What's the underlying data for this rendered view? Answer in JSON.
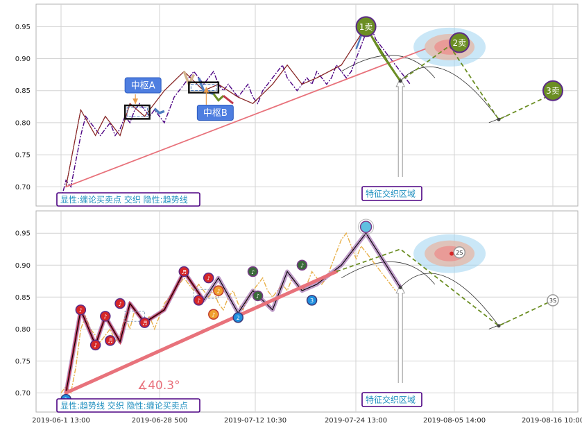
{
  "chart_data": [
    {
      "type": "line",
      "panel": "top",
      "ylim": [
        0.67,
        0.985
      ],
      "yticks": [
        0.7,
        0.75,
        0.8,
        0.85,
        0.9,
        0.95
      ],
      "ytick_labels": [
        "0.70",
        "0.75",
        "0.80",
        "0.85",
        "0.90",
        "0.95"
      ],
      "x_index_range": [
        0,
        100
      ],
      "grid": true,
      "series": [
        {
          "role": "price",
          "color": "#4b0082",
          "style": "dashdot",
          "x": [
            1,
            2,
            3,
            4,
            5,
            6,
            7,
            8,
            9,
            10,
            11,
            12,
            13,
            14,
            15,
            16,
            17,
            18,
            19,
            20,
            21,
            22,
            23,
            24,
            25,
            26,
            27,
            28,
            29,
            30,
            31,
            32,
            33,
            34,
            35,
            36,
            37,
            38,
            39,
            40,
            41,
            42,
            43,
            44,
            45,
            46,
            47,
            48,
            49,
            50,
            51,
            52,
            53,
            54,
            55,
            56,
            57,
            58,
            59,
            60,
            61,
            62,
            63,
            64,
            65,
            66,
            67,
            68,
            69,
            70,
            71,
            72
          ],
          "y": [
            0.68,
            0.71,
            0.7,
            0.74,
            0.78,
            0.81,
            0.8,
            0.79,
            0.78,
            0.79,
            0.8,
            0.78,
            0.79,
            0.81,
            0.8,
            0.82,
            0.83,
            0.82,
            0.81,
            0.82,
            0.81,
            0.8,
            0.82,
            0.84,
            0.85,
            0.86,
            0.87,
            0.88,
            0.87,
            0.86,
            0.87,
            0.88,
            0.86,
            0.85,
            0.86,
            0.85,
            0.84,
            0.85,
            0.86,
            0.84,
            0.83,
            0.85,
            0.86,
            0.87,
            0.88,
            0.89,
            0.87,
            0.86,
            0.85,
            0.86,
            0.87,
            0.86,
            0.88,
            0.87,
            0.86,
            0.87,
            0.89,
            0.88,
            0.87,
            0.88,
            0.9,
            0.92,
            0.94,
            0.95,
            0.93,
            0.92,
            0.91,
            0.9,
            0.89,
            0.88,
            0.87,
            0.86
          ]
        },
        {
          "role": "stroke",
          "color": "#000000",
          "style": "solid",
          "x": [
            2,
            5,
            8,
            10,
            13,
            15,
            18,
            22,
            26,
            30,
            33,
            37,
            40,
            44,
            47,
            50,
            53,
            58,
            63,
            70
          ],
          "y": [
            0.7,
            0.82,
            0.78,
            0.81,
            0.78,
            0.83,
            0.81,
            0.85,
            0.88,
            0.85,
            0.86,
            0.84,
            0.83,
            0.86,
            0.89,
            0.86,
            0.87,
            0.89,
            0.95,
            0.865
          ]
        },
        {
          "role": "stroke-red",
          "color": "#a52a2a",
          "style": "solid",
          "x": [
            2,
            5,
            8,
            10,
            13,
            15,
            18,
            22,
            26,
            30,
            33,
            37,
            40,
            44,
            47,
            50,
            53,
            58,
            63
          ],
          "y": [
            0.7,
            0.82,
            0.78,
            0.81,
            0.78,
            0.83,
            0.81,
            0.85,
            0.88,
            0.85,
            0.86,
            0.84,
            0.83,
            0.86,
            0.89,
            0.86,
            0.87,
            0.89,
            0.95
          ]
        },
        {
          "role": "trendline",
          "color": "#e8727b",
          "style": "solid",
          "x": [
            2,
            75
          ],
          "y": [
            0.7,
            0.915
          ]
        },
        {
          "role": "sell-projection",
          "color": "#6b8e23",
          "style": "dashed",
          "x": [
            63,
            70,
            80,
            90,
            101
          ],
          "y": [
            0.95,
            0.865,
            0.92,
            0.805,
            0.845
          ]
        }
      ],
      "pivots": [
        {
          "label": "中枢A",
          "x_range": [
            14,
            19
          ],
          "y_range": [
            0.806,
            0.827
          ]
        },
        {
          "label": "中枢B",
          "x_range": [
            27,
            33
          ],
          "y_range": [
            0.847,
            0.863
          ]
        }
      ],
      "signals": [
        {
          "label": "1卖",
          "x": 63,
          "y": 0.95
        },
        {
          "label": "2卖",
          "x": 82,
          "y": 0.925
        },
        {
          "label": "3卖",
          "x": 101,
          "y": 0.85
        }
      ],
      "legend": "显性:缠论买卖点 交织 隐性:趋势线",
      "zone_label": "特征交织区域"
    },
    {
      "type": "line",
      "panel": "bottom",
      "ylim": [
        0.67,
        0.985
      ],
      "yticks": [
        0.7,
        0.75,
        0.8,
        0.85,
        0.9,
        0.95
      ],
      "ytick_labels": [
        "0.70",
        "0.75",
        "0.80",
        "0.85",
        "0.90",
        "0.95"
      ],
      "grid": true,
      "x_tick_labels": [
        "2019-06-1 13:00",
        "2019-06-28 500",
        "2019-07-12 10:30",
        "2019-07-24 13:00",
        "2019-08-05 14:00",
        "2019-08-16 10:00"
      ],
      "series": [
        {
          "role": "price",
          "color": "#e8b04a",
          "style": "dashdot",
          "x": [
            1,
            2,
            3,
            4,
            5,
            6,
            7,
            8,
            9,
            10,
            11,
            12,
            13,
            14,
            15,
            16,
            17,
            18,
            19,
            20,
            21,
            22,
            23,
            24,
            25,
            26,
            27,
            28,
            29,
            30,
            31,
            32,
            33,
            34,
            35,
            36,
            37,
            38,
            39,
            40,
            41,
            42,
            43,
            44,
            45,
            46,
            47,
            48,
            49,
            50,
            51,
            52,
            53,
            54,
            55,
            56,
            57,
            58,
            59,
            60,
            61,
            62,
            63,
            64,
            65,
            66,
            67,
            68,
            69
          ],
          "y": [
            0.7,
            0.71,
            0.7,
            0.74,
            0.8,
            0.82,
            0.8,
            0.79,
            0.78,
            0.79,
            0.8,
            0.78,
            0.79,
            0.82,
            0.8,
            0.83,
            0.82,
            0.81,
            0.82,
            0.8,
            0.82,
            0.84,
            0.85,
            0.86,
            0.87,
            0.88,
            0.87,
            0.86,
            0.87,
            0.86,
            0.85,
            0.86,
            0.84,
            0.83,
            0.85,
            0.86,
            0.84,
            0.83,
            0.85,
            0.86,
            0.87,
            0.88,
            0.86,
            0.85,
            0.86,
            0.87,
            0.86,
            0.88,
            0.87,
            0.86,
            0.87,
            0.89,
            0.88,
            0.87,
            0.88,
            0.9,
            0.92,
            0.94,
            0.95,
            0.93,
            0.91,
            0.93,
            0.92,
            0.91,
            0.9,
            0.89,
            0.88,
            0.87,
            0.86
          ]
        },
        {
          "role": "stroke",
          "color": "#000000",
          "style": "solid",
          "x": [
            2,
            5,
            8,
            10,
            13,
            15,
            18,
            22,
            26,
            30,
            33,
            37,
            40,
            44,
            47,
            50,
            53,
            58,
            63,
            70
          ],
          "y": [
            0.7,
            0.83,
            0.775,
            0.82,
            0.78,
            0.84,
            0.81,
            0.83,
            0.89,
            0.845,
            0.88,
            0.825,
            0.86,
            0.83,
            0.89,
            0.86,
            0.87,
            0.9,
            0.95,
            0.865
          ]
        },
        {
          "role": "trendline",
          "color": "#e8727b",
          "style": "solid",
          "x": [
            2,
            57
          ],
          "y": [
            0.7,
            0.89
          ]
        },
        {
          "role": "trend-extension",
          "color": "#6b8e23",
          "style": "dashed",
          "x": [
            57,
            70,
            90,
            101
          ],
          "y": [
            0.89,
            0.925,
            0.805,
            0.845
          ]
        }
      ],
      "markers": [
        {
          "label": "1",
          "kind": "buy",
          "x": 2,
          "y": 0.69
        },
        {
          "label": "♪",
          "kind": "sell",
          "x": 5,
          "y": 0.83
        },
        {
          "label": "♪",
          "kind": "sell",
          "x": 8,
          "y": 0.775
        },
        {
          "label": "♪",
          "kind": "sell",
          "x": 10,
          "y": 0.82
        },
        {
          "label": "♬",
          "kind": "sell",
          "x": 11,
          "y": 0.782
        },
        {
          "label": "♪",
          "kind": "sell",
          "x": 13,
          "y": 0.84
        },
        {
          "label": "♬",
          "kind": "sell",
          "x": 18,
          "y": 0.81
        },
        {
          "label": "♬",
          "kind": "sell",
          "x": 26,
          "y": 0.89
        },
        {
          "label": "♪",
          "kind": "sell",
          "x": 29,
          "y": 0.845
        },
        {
          "label": "♪",
          "kind": "sell",
          "x": 31,
          "y": 0.88
        },
        {
          "label": "♪",
          "kind": "alt",
          "x": 33,
          "y": 0.86
        },
        {
          "label": "♪",
          "kind": "alt",
          "x": 32,
          "y": 0.823
        },
        {
          "label": "2",
          "kind": "buy",
          "x": 37,
          "y": 0.818
        },
        {
          "label": "♪",
          "kind": "green",
          "x": 40,
          "y": 0.89
        },
        {
          "label": "♪",
          "kind": "green",
          "x": 41,
          "y": 0.852
        },
        {
          "label": "♪",
          "kind": "green",
          "x": 50,
          "y": 0.9
        },
        {
          "label": "3",
          "kind": "buy",
          "x": 52,
          "y": 0.845
        },
        {
          "label": "",
          "kind": "peak",
          "x": 63,
          "y": 0.96
        },
        {
          "label": "2S",
          "kind": "ring",
          "x": 82,
          "y": 0.92
        },
        {
          "label": "3S",
          "kind": "ring",
          "x": 101,
          "y": 0.845
        }
      ],
      "angle_label": "∡40.3°",
      "legend": "显性:趋势线 交织 隐性:缠论买卖点",
      "zone_label": "特征交织区域"
    }
  ],
  "colors": {
    "grid": "#d3d3d3",
    "axis": "#b0b0b0",
    "zone": "#9fd3f0"
  }
}
